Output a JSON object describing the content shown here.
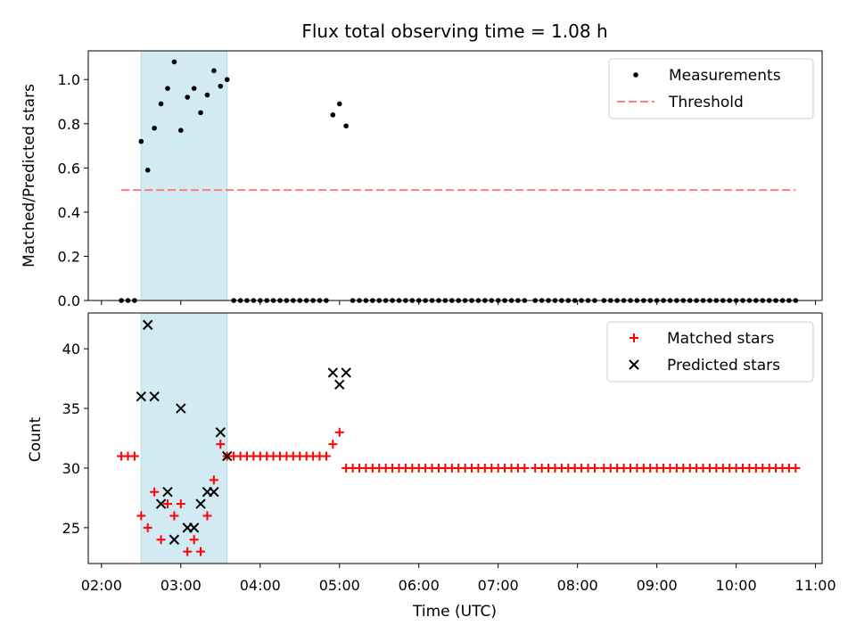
{
  "chart_data": [
    {
      "type": "scatter",
      "title": "Flux total observing time = 1.08 h",
      "xlabel": "",
      "ylabel": "Matched/Predicted stars",
      "ylim": [
        0,
        1.13
      ],
      "yticks": [
        "0.0",
        "0.2",
        "0.4",
        "0.6",
        "0.8",
        "1.0"
      ],
      "yticks_values": [
        0,
        0.2,
        0.4,
        0.6,
        0.8,
        1.0
      ],
      "grid": false,
      "legend_position": "top-right",
      "shaded_interval": {
        "start": "02:30",
        "end": "03:35",
        "color": "#add8e6"
      },
      "threshold": {
        "name": "Threshold",
        "value": 0.5,
        "x_start": "02:15",
        "x_end": "10:45",
        "color": "#ff7f7f"
      },
      "series": [
        {
          "name": "Measurements",
          "color": "#000000",
          "points": [
            [
              "02:15",
              0
            ],
            [
              "02:20",
              0
            ],
            [
              "02:25",
              0
            ],
            [
              "02:30",
              0.72
            ],
            [
              "02:35",
              0.59
            ],
            [
              "02:40",
              0.78
            ],
            [
              "02:45",
              0.89
            ],
            [
              "02:50",
              0.96
            ],
            [
              "02:55",
              1.08
            ],
            [
              "03:00",
              0.77
            ],
            [
              "03:05",
              0.92
            ],
            [
              "03:10",
              0.96
            ],
            [
              "03:15",
              0.85
            ],
            [
              "03:20",
              0.93
            ],
            [
              "03:25",
              1.04
            ],
            [
              "03:30",
              0.97
            ],
            [
              "03:35",
              1.0
            ],
            [
              "03:40",
              0
            ],
            [
              "03:45",
              0
            ],
            [
              "03:50",
              0
            ],
            [
              "03:55",
              0
            ],
            [
              "04:00",
              0
            ],
            [
              "04:05",
              0
            ],
            [
              "04:10",
              0
            ],
            [
              "04:15",
              0
            ],
            [
              "04:20",
              0
            ],
            [
              "04:25",
              0
            ],
            [
              "04:30",
              0
            ],
            [
              "04:35",
              0
            ],
            [
              "04:40",
              0
            ],
            [
              "04:45",
              0
            ],
            [
              "04:50",
              0
            ],
            [
              "04:55",
              0.84
            ],
            [
              "05:00",
              0.89
            ],
            [
              "05:05",
              0.79
            ],
            [
              "05:10",
              0
            ],
            [
              "05:15",
              0
            ],
            [
              "05:20",
              0
            ],
            [
              "05:25",
              0
            ],
            [
              "05:30",
              0
            ],
            [
              "05:35",
              0
            ],
            [
              "05:40",
              0
            ],
            [
              "05:45",
              0
            ],
            [
              "05:50",
              0
            ],
            [
              "05:55",
              0
            ],
            [
              "06:00",
              0
            ],
            [
              "06:05",
              0
            ],
            [
              "06:10",
              0
            ],
            [
              "06:15",
              0
            ],
            [
              "06:20",
              0
            ],
            [
              "06:25",
              0
            ],
            [
              "06:30",
              0
            ],
            [
              "06:35",
              0
            ],
            [
              "06:40",
              0
            ],
            [
              "06:45",
              0
            ],
            [
              "06:50",
              0
            ],
            [
              "06:55",
              0
            ],
            [
              "07:00",
              0
            ],
            [
              "07:05",
              0
            ],
            [
              "07:10",
              0
            ],
            [
              "07:15",
              0
            ],
            [
              "07:20",
              0
            ],
            [
              "07:28",
              0
            ],
            [
              "07:33",
              0
            ],
            [
              "07:38",
              0
            ],
            [
              "07:43",
              0
            ],
            [
              "07:48",
              0
            ],
            [
              "07:53",
              0
            ],
            [
              "07:58",
              0
            ],
            [
              "08:03",
              0
            ],
            [
              "08:08",
              0
            ],
            [
              "08:13",
              0
            ],
            [
              "08:20",
              0
            ],
            [
              "08:25",
              0
            ],
            [
              "08:30",
              0
            ],
            [
              "08:35",
              0
            ],
            [
              "08:40",
              0
            ],
            [
              "08:45",
              0
            ],
            [
              "08:50",
              0
            ],
            [
              "08:55",
              0
            ],
            [
              "09:00",
              0
            ],
            [
              "09:05",
              0
            ],
            [
              "09:10",
              0
            ],
            [
              "09:15",
              0
            ],
            [
              "09:20",
              0
            ],
            [
              "09:25",
              0
            ],
            [
              "09:30",
              0
            ],
            [
              "09:35",
              0
            ],
            [
              "09:40",
              0
            ],
            [
              "09:45",
              0
            ],
            [
              "09:50",
              0
            ],
            [
              "09:55",
              0
            ],
            [
              "10:00",
              0
            ],
            [
              "10:05",
              0
            ],
            [
              "10:10",
              0
            ],
            [
              "10:15",
              0
            ],
            [
              "10:20",
              0
            ],
            [
              "10:25",
              0
            ],
            [
              "10:30",
              0
            ],
            [
              "10:35",
              0
            ],
            [
              "10:40",
              0
            ],
            [
              "10:45",
              0
            ]
          ]
        }
      ]
    },
    {
      "type": "scatter",
      "title": "",
      "xlabel": "Time (UTC)",
      "ylabel": "Count",
      "ylim": [
        22,
        43
      ],
      "yticks": [
        "25",
        "30",
        "35",
        "40"
      ],
      "yticks_values": [
        25,
        30,
        35,
        40
      ],
      "xlim": [
        "01:50",
        "11:05"
      ],
      "xticks": [
        "02:00",
        "03:00",
        "04:00",
        "05:00",
        "06:00",
        "07:00",
        "08:00",
        "09:00",
        "10:00",
        "11:00"
      ],
      "grid": false,
      "legend_position": "top-right",
      "shaded_interval": {
        "start": "02:30",
        "end": "03:35",
        "color": "#add8e6"
      },
      "series": [
        {
          "name": "Matched stars",
          "marker": "plus",
          "color": "#ff0000",
          "points": [
            [
              "02:15",
              31
            ],
            [
              "02:20",
              31
            ],
            [
              "02:25",
              31
            ],
            [
              "02:30",
              26
            ],
            [
              "02:35",
              25
            ],
            [
              "02:40",
              28
            ],
            [
              "02:45",
              24
            ],
            [
              "02:50",
              27
            ],
            [
              "02:55",
              26
            ],
            [
              "03:00",
              27
            ],
            [
              "03:05",
              23
            ],
            [
              "03:10",
              24
            ],
            [
              "03:15",
              23
            ],
            [
              "03:20",
              26
            ],
            [
              "03:25",
              29
            ],
            [
              "03:30",
              32
            ],
            [
              "03:35",
              31
            ],
            [
              "03:40",
              31
            ],
            [
              "03:45",
              31
            ],
            [
              "03:50",
              31
            ],
            [
              "03:55",
              31
            ],
            [
              "04:00",
              31
            ],
            [
              "04:05",
              31
            ],
            [
              "04:10",
              31
            ],
            [
              "04:15",
              31
            ],
            [
              "04:20",
              31
            ],
            [
              "04:25",
              31
            ],
            [
              "04:30",
              31
            ],
            [
              "04:35",
              31
            ],
            [
              "04:40",
              31
            ],
            [
              "04:45",
              31
            ],
            [
              "04:50",
              31
            ],
            [
              "04:55",
              32
            ],
            [
              "05:00",
              33
            ],
            [
              "05:05",
              30
            ],
            [
              "05:10",
              30
            ],
            [
              "05:15",
              30
            ],
            [
              "05:20",
              30
            ],
            [
              "05:25",
              30
            ],
            [
              "05:30",
              30
            ],
            [
              "05:35",
              30
            ],
            [
              "05:40",
              30
            ],
            [
              "05:45",
              30
            ],
            [
              "05:50",
              30
            ],
            [
              "05:55",
              30
            ],
            [
              "06:00",
              30
            ],
            [
              "06:05",
              30
            ],
            [
              "06:10",
              30
            ],
            [
              "06:15",
              30
            ],
            [
              "06:20",
              30
            ],
            [
              "06:25",
              30
            ],
            [
              "06:30",
              30
            ],
            [
              "06:35",
              30
            ],
            [
              "06:40",
              30
            ],
            [
              "06:45",
              30
            ],
            [
              "06:50",
              30
            ],
            [
              "06:55",
              30
            ],
            [
              "07:00",
              30
            ],
            [
              "07:05",
              30
            ],
            [
              "07:10",
              30
            ],
            [
              "07:15",
              30
            ],
            [
              "07:20",
              30
            ],
            [
              "07:28",
              30
            ],
            [
              "07:33",
              30
            ],
            [
              "07:38",
              30
            ],
            [
              "07:43",
              30
            ],
            [
              "07:48",
              30
            ],
            [
              "07:53",
              30
            ],
            [
              "07:58",
              30
            ],
            [
              "08:03",
              30
            ],
            [
              "08:08",
              30
            ],
            [
              "08:13",
              30
            ],
            [
              "08:20",
              30
            ],
            [
              "08:25",
              30
            ],
            [
              "08:30",
              30
            ],
            [
              "08:35",
              30
            ],
            [
              "08:40",
              30
            ],
            [
              "08:45",
              30
            ],
            [
              "08:50",
              30
            ],
            [
              "08:55",
              30
            ],
            [
              "09:00",
              30
            ],
            [
              "09:05",
              30
            ],
            [
              "09:10",
              30
            ],
            [
              "09:15",
              30
            ],
            [
              "09:20",
              30
            ],
            [
              "09:25",
              30
            ],
            [
              "09:30",
              30
            ],
            [
              "09:35",
              30
            ],
            [
              "09:40",
              30
            ],
            [
              "09:45",
              30
            ],
            [
              "09:50",
              30
            ],
            [
              "09:55",
              30
            ],
            [
              "10:00",
              30
            ],
            [
              "10:05",
              30
            ],
            [
              "10:10",
              30
            ],
            [
              "10:15",
              30
            ],
            [
              "10:20",
              30
            ],
            [
              "10:25",
              30
            ],
            [
              "10:30",
              30
            ],
            [
              "10:35",
              30
            ],
            [
              "10:40",
              30
            ],
            [
              "10:45",
              30
            ]
          ]
        },
        {
          "name": "Predicted stars",
          "marker": "x",
          "color": "#000000",
          "points": [
            [
              "02:30",
              36
            ],
            [
              "02:35",
              42
            ],
            [
              "02:40",
              36
            ],
            [
              "02:45",
              27
            ],
            [
              "02:50",
              28
            ],
            [
              "02:55",
              24
            ],
            [
              "03:00",
              35
            ],
            [
              "03:05",
              25
            ],
            [
              "03:10",
              25
            ],
            [
              "03:15",
              27
            ],
            [
              "03:20",
              28
            ],
            [
              "03:25",
              28
            ],
            [
              "03:30",
              33
            ],
            [
              "03:35",
              31
            ],
            [
              "04:55",
              38
            ],
            [
              "05:00",
              37
            ],
            [
              "05:05",
              38
            ]
          ]
        }
      ]
    }
  ]
}
